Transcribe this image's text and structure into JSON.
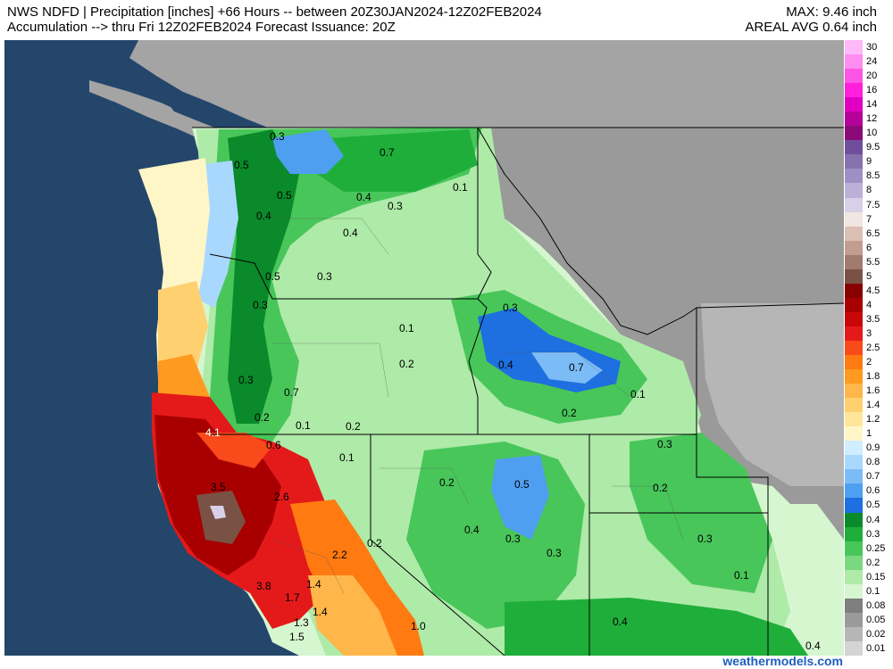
{
  "header": {
    "line1_left": "NWS NDFD | Precipitation [inches] +66 Hours -- between 20Z30JAN2024-12Z02FEB2024",
    "line2_left": "Accumulation --> thru Fri 12Z02FEB2024  Forecast Issuance: 20Z",
    "line1_right": "MAX: 9.46 inch",
    "line2_right": "AREAL AVG 0.64 inch"
  },
  "credit": "weathermodels.com",
  "colors": {
    "ocean": "#24466b",
    "land_nodata": "#a4a4a4",
    "border": "#000000"
  },
  "legend": {
    "levels": [
      {
        "label": "30",
        "color": "#ffb8f8"
      },
      {
        "label": "24",
        "color": "#ff8cf0"
      },
      {
        "label": "20",
        "color": "#ff55e6"
      },
      {
        "label": "16",
        "color": "#ff1fdc"
      },
      {
        "label": "14",
        "color": "#e000c4"
      },
      {
        "label": "12",
        "color": "#b5009c"
      },
      {
        "label": "10",
        "color": "#8a0a78"
      },
      {
        "label": "9.5",
        "color": "#6f4f9c"
      },
      {
        "label": "9",
        "color": "#8772b0"
      },
      {
        "label": "8.5",
        "color": "#a08fc4"
      },
      {
        "label": "8",
        "color": "#bcb0d8"
      },
      {
        "label": "7.5",
        "color": "#d8d0e9"
      },
      {
        "label": "7",
        "color": "#f0e6e2"
      },
      {
        "label": "6.5",
        "color": "#dcbfb5"
      },
      {
        "label": "6",
        "color": "#c39c90"
      },
      {
        "label": "5.5",
        "color": "#a17a6e"
      },
      {
        "label": "5",
        "color": "#7a5245"
      },
      {
        "label": "4.5",
        "color": "#880000"
      },
      {
        "label": "4",
        "color": "#a80000"
      },
      {
        "label": "3.5",
        "color": "#c80808"
      },
      {
        "label": "3",
        "color": "#e41a1a"
      },
      {
        "label": "2.5",
        "color": "#f84a1a"
      },
      {
        "label": "2",
        "color": "#ff7a10"
      },
      {
        "label": "1.8",
        "color": "#ff9a20"
      },
      {
        "label": "1.6",
        "color": "#ffb64a"
      },
      {
        "label": "1.4",
        "color": "#ffd070"
      },
      {
        "label": "1.2",
        "color": "#ffe69a"
      },
      {
        "label": "1",
        "color": "#fff6c8"
      },
      {
        "label": "0.9",
        "color": "#cfeeff"
      },
      {
        "label": "0.8",
        "color": "#a9d8ff"
      },
      {
        "label": "0.7",
        "color": "#7cbcf6"
      },
      {
        "label": "0.6",
        "color": "#4f9ff0"
      },
      {
        "label": "0.5",
        "color": "#1e6fe0"
      },
      {
        "label": "0.4",
        "color": "#0a8a2a"
      },
      {
        "label": "0.3",
        "color": "#1fae3a"
      },
      {
        "label": "0.25",
        "color": "#48c65a"
      },
      {
        "label": "0.2",
        "color": "#7ad87e"
      },
      {
        "label": "0.15",
        "color": "#aeeaa8"
      },
      {
        "label": "0.1",
        "color": "#d6f6d0"
      },
      {
        "label": "0.08",
        "color": "#7e7e7e"
      },
      {
        "label": "0.05",
        "color": "#9a9a9a"
      },
      {
        "label": "0.02",
        "color": "#b6b6b6"
      },
      {
        "label": "0.01",
        "color": "#d4d4d4"
      }
    ]
  },
  "map_labels": [
    {
      "text": "0.3"
    },
    {
      "text": "0.7"
    },
    {
      "text": "0.5"
    },
    {
      "text": "0.5"
    },
    {
      "text": "0.4"
    },
    {
      "text": "0.1"
    },
    {
      "text": "0.3"
    },
    {
      "text": "0.4"
    },
    {
      "text": "0.4"
    },
    {
      "text": "0.5"
    },
    {
      "text": "0.3"
    },
    {
      "text": "0.3"
    },
    {
      "text": "0.1"
    },
    {
      "text": "0.3"
    },
    {
      "text": "0.2"
    },
    {
      "text": "0.4"
    },
    {
      "text": "0.7"
    },
    {
      "text": "0.3"
    },
    {
      "text": "0.7"
    },
    {
      "text": "0.1"
    },
    {
      "text": "0.2"
    },
    {
      "text": "0.1"
    },
    {
      "text": "0.2"
    },
    {
      "text": "0.2"
    },
    {
      "text": "4.1"
    },
    {
      "text": "0.6"
    },
    {
      "text": "0.1"
    },
    {
      "text": "0.3"
    },
    {
      "text": "0.2"
    },
    {
      "text": "0.5"
    },
    {
      "text": "0.2"
    },
    {
      "text": "3.5"
    },
    {
      "text": "2.6"
    },
    {
      "text": "0.4"
    },
    {
      "text": "0.3"
    },
    {
      "text": "0.3"
    },
    {
      "text": "0.3"
    },
    {
      "text": "0.2"
    },
    {
      "text": "2.2"
    },
    {
      "text": "0.1"
    },
    {
      "text": "3.8"
    },
    {
      "text": "1.4"
    },
    {
      "text": "1.7"
    },
    {
      "text": "1.4"
    },
    {
      "text": "1.3"
    },
    {
      "text": "1.5"
    },
    {
      "text": "1.0"
    },
    {
      "text": "0.4"
    },
    {
      "text": "0.4"
    }
  ]
}
